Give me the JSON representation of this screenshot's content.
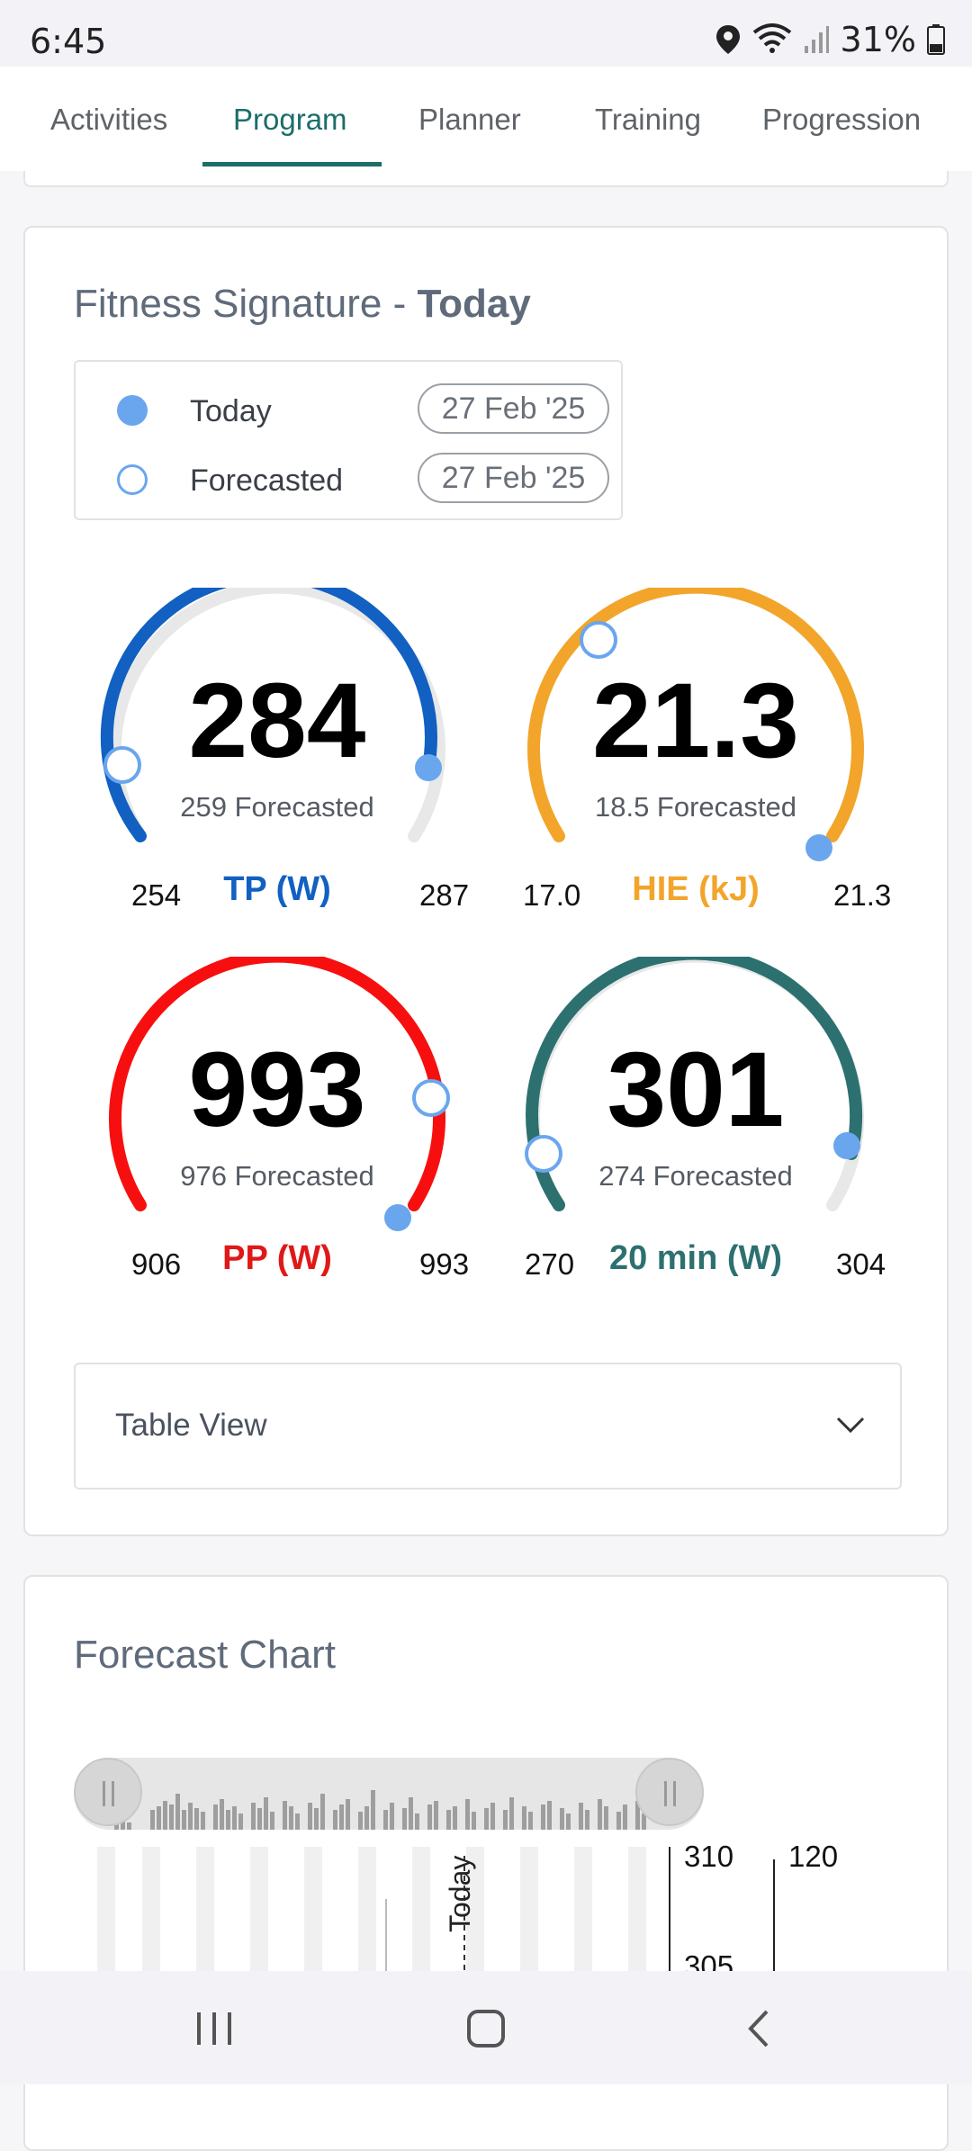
{
  "status": {
    "time": "6:45",
    "battery": "31%"
  },
  "tabs": [
    "Activities",
    "Program",
    "Planner",
    "Training",
    "Progression"
  ],
  "active_tab": "Program",
  "fitness": {
    "title_prefix": "Fitness Signature - ",
    "title_bold": "Today",
    "legend": [
      {
        "label": "Today",
        "date": "27 Feb '25"
      },
      {
        "label": "Forecasted",
        "date": "27 Feb '25"
      }
    ],
    "gauges": [
      {
        "value": "284",
        "forecast": "259 Forecasted",
        "min": "254",
        "max": "287",
        "label": "TP (W)",
        "color": "#1160c2"
      },
      {
        "value": "21.3",
        "forecast": "18.5 Forecasted",
        "min": "17.0",
        "max": "21.3",
        "label": "HIE (kJ)",
        "color": "#f2a52a"
      },
      {
        "value": "993",
        "forecast": "976 Forecasted",
        "min": "906",
        "max": "993",
        "label": "PP (W)",
        "color": "#f70f0f"
      },
      {
        "value": "301",
        "forecast": "274 Forecasted",
        "min": "270",
        "max": "304",
        "label": "20 min (W)",
        "color": "#2d7070"
      }
    ],
    "table_view": "Table View"
  },
  "forecast": {
    "title": "Forecast Chart",
    "axis_left_ticks": [
      "310",
      "305"
    ],
    "axis_right_ticks": [
      "120"
    ],
    "today_marker": "Today"
  },
  "colors": {
    "accent": "#1b6e6a",
    "today_dot": "#6aa6ee",
    "forecast_ring": "#6aa6ee"
  }
}
